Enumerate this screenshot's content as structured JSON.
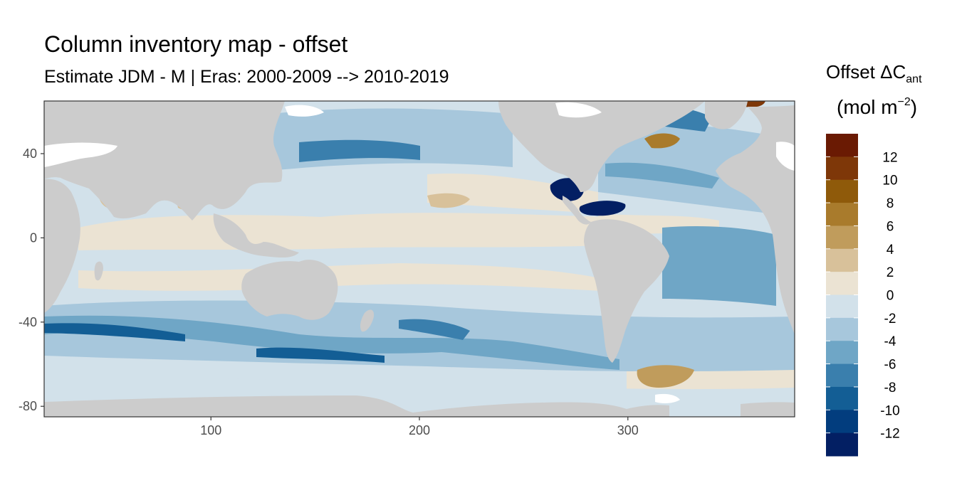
{
  "title": "Column inventory map - offset",
  "subtitle": "Estimate JDM - M | Eras: 2000-2009 --> 2010-2019",
  "legend": {
    "title_main": "Offset ΔC",
    "title_sub": "ant",
    "units_base": "(mol m",
    "units_exp": "−2",
    "units_close": ")",
    "bins": [
      {
        "label": "12",
        "color": "#6a1a03"
      },
      {
        "label": "10",
        "color": "#7e3708"
      },
      {
        "label": "8",
        "color": "#8f5a0a"
      },
      {
        "label": "6",
        "color": "#a97b2c"
      },
      {
        "label": "4",
        "color": "#c09c5c"
      },
      {
        "label": "2",
        "color": "#d8c19a"
      },
      {
        "label": "0",
        "color": "#ebe3d3"
      },
      {
        "label": "-2",
        "color": "#d2e1ea"
      },
      {
        "label": "-4",
        "color": "#a7c7dc"
      },
      {
        "label": "-6",
        "color": "#6fa6c6"
      },
      {
        "label": "-8",
        "color": "#3a7fad"
      },
      {
        "label": "-10",
        "color": "#135e95"
      },
      {
        "label": "-12",
        "color": "#023d7e"
      },
      {
        "label": "",
        "color": "#031f63"
      }
    ]
  },
  "axes": {
    "x_ticks": [
      "100",
      "200",
      "300"
    ],
    "x_values": [
      100,
      200,
      300
    ],
    "x_range": [
      20,
      380
    ],
    "y_ticks": [
      "40",
      "0",
      "-40",
      "-80"
    ],
    "y_values": [
      40,
      0,
      -40,
      -80
    ],
    "y_range": [
      -85,
      65
    ]
  },
  "colors": {
    "land": "#cccccc",
    "panel_border": "#333333",
    "no_data": "#ffffff"
  }
}
